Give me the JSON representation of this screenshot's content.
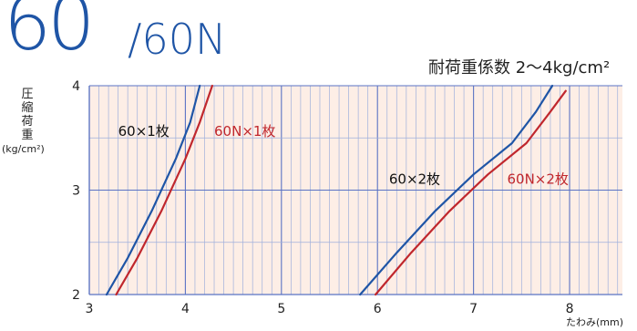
{
  "brand": {
    "main": "60",
    "slash_variant": "/60N"
  },
  "coefficient_label": "耐荷重係数 2〜4kg/cm²",
  "chart_data": {
    "type": "line",
    "ylabel": "圧縮荷重",
    "yunit": "(kg/cm²)",
    "xlabel": "たわみ(mm)",
    "xlim": [
      3,
      8.55
    ],
    "ylim": [
      2,
      4
    ],
    "xticks": [
      "3",
      "4",
      "5",
      "6",
      "7",
      "8"
    ],
    "yticks": [
      "2",
      "3",
      "4"
    ],
    "grid": true,
    "colors": {
      "blue": "#1f55a6",
      "red": "#c0272d",
      "grid_minor": "#9fb0dc",
      "grid_major": "#5a73c4",
      "background": "#fdeee6"
    },
    "series": [
      {
        "name": "60×1枚",
        "color": "#1f55a6",
        "x": [
          3.18,
          3.4,
          3.65,
          3.9,
          4.05,
          4.15
        ],
        "y": [
          2.0,
          2.35,
          2.8,
          3.3,
          3.65,
          4.0
        ]
      },
      {
        "name": "60N×1枚",
        "color": "#c0272d",
        "x": [
          3.28,
          3.5,
          3.75,
          4.0,
          4.15,
          4.28
        ],
        "y": [
          2.0,
          2.35,
          2.8,
          3.3,
          3.65,
          4.0
        ]
      },
      {
        "name": "60×2枚",
        "color": "#1f55a6",
        "x": [
          5.82,
          6.2,
          6.6,
          7.0,
          7.4,
          7.65,
          7.82
        ],
        "y": [
          2.0,
          2.4,
          2.8,
          3.15,
          3.45,
          3.75,
          4.0
        ]
      },
      {
        "name": "60N×2枚",
        "color": "#c0272d",
        "x": [
          5.98,
          6.35,
          6.75,
          7.15,
          7.55,
          7.8,
          7.96
        ],
        "y": [
          2.0,
          2.4,
          2.8,
          3.15,
          3.45,
          3.75,
          3.95
        ]
      }
    ]
  }
}
